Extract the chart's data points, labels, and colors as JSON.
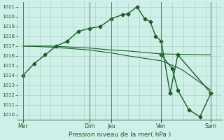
{
  "background_color": "#cff0e8",
  "grid_color": "#a0ccbb",
  "line_color": "#1a5c28",
  "xlabel": "Pression niveau de la mer( hPa )",
  "ylim": [
    1009.5,
    1021.5
  ],
  "yticks": [
    1010,
    1011,
    1012,
    1013,
    1014,
    1015,
    1016,
    1017,
    1018,
    1019,
    1020,
    1021
  ],
  "xlim": [
    0,
    18.5
  ],
  "day_labels": [
    "Mer",
    "Dim",
    "Jeu",
    "Ven",
    "Sam"
  ],
  "day_positions": [
    0.5,
    6.5,
    8.5,
    13.0,
    17.5
  ],
  "vline_positions": [
    0.5,
    6.5,
    8.5,
    13.0,
    17.5
  ],
  "series1_x": [
    0.5,
    1.5,
    2.5,
    3.5,
    4.5,
    5.5,
    6.5,
    7.5,
    8.5,
    9.5,
    10.0,
    10.8,
    11.5,
    12.0,
    12.5,
    13.0,
    13.8,
    14.5,
    17.5
  ],
  "series1_y": [
    1014.0,
    1015.2,
    1016.1,
    1017.0,
    1017.5,
    1018.5,
    1018.8,
    1019.0,
    1019.8,
    1020.2,
    1020.3,
    1021.0,
    1019.8,
    1019.5,
    1018.0,
    1017.5,
    1012.2,
    1016.1,
    1012.2
  ],
  "series2_x": [
    0.5,
    3.0,
    6.5,
    8.5,
    10.0,
    13.0,
    17.5
  ],
  "series2_y": [
    1017.0,
    1017.0,
    1016.8,
    1016.6,
    1016.5,
    1016.2,
    1016.1
  ],
  "series3_x": [
    0.5,
    3.0,
    6.5,
    8.5,
    10.0,
    13.0,
    14.5,
    15.0,
    17.5
  ],
  "series3_y": [
    1017.0,
    1016.9,
    1016.6,
    1016.3,
    1016.0,
    1015.5,
    1014.8,
    1014.5,
    1012.5
  ],
  "series4_x": [
    13.0,
    14.0,
    14.5,
    15.5,
    16.5,
    17.5
  ],
  "series4_y": [
    1016.1,
    1014.7,
    1012.5,
    1010.5,
    1009.8,
    1012.2
  ]
}
